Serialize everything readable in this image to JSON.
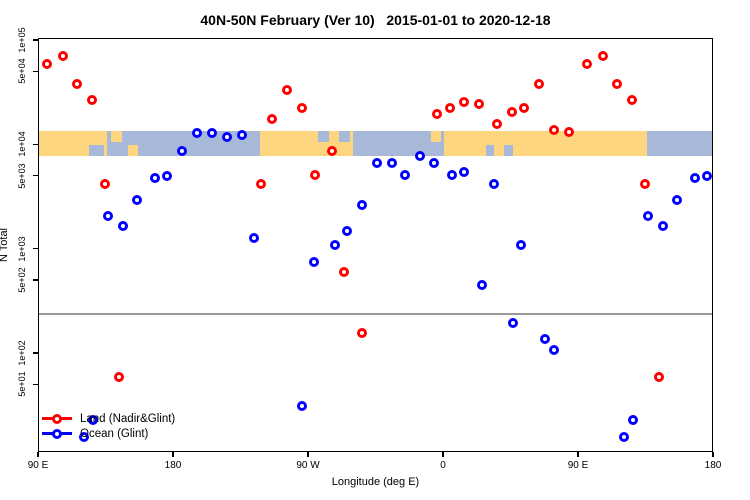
{
  "title": "40N-50N February (Ver 10)   2015-01-01 to 2020-12-18",
  "y_axis": {
    "label": "N Total",
    "ticks": [
      {
        "label": "1e+05",
        "value": 100000
      },
      {
        "label": "5e+04",
        "value": 50000
      },
      {
        "label": "1e+04",
        "value": 10000
      },
      {
        "label": "5e+03",
        "value": 5000
      },
      {
        "label": "1e+03",
        "value": 1000
      },
      {
        "label": "5e+02",
        "value": 500
      },
      {
        "label": "1e+02",
        "value": 100
      },
      {
        "label": "5e+01",
        "value": 50
      }
    ]
  },
  "x_axis": {
    "label": "Longitude (deg E)",
    "ticks": [
      {
        "label": "90 E",
        "lon": 90
      },
      {
        "label": "180",
        "lon": 180
      },
      {
        "label": "90 W",
        "lon": 270
      },
      {
        "label": "0",
        "lon": 360
      },
      {
        "label": "90 E",
        "lon": 450
      },
      {
        "label": "180",
        "lon": 540
      }
    ]
  },
  "legend": {
    "items": [
      {
        "label": "Land (Nadir&Glint)",
        "color": "#FF0000"
      },
      {
        "label": "Ocean (Glint)",
        "color": "#0000FF"
      }
    ]
  },
  "colors": {
    "land_point": "#FF0000",
    "ocean_point": "#0000FF",
    "map_land": "#FCD57E",
    "map_ocean": "#A8B8D8",
    "reference_line": "#999999"
  },
  "chart_data": {
    "type": "scatter",
    "title": "40N-50N February (Ver 10)   2015-01-01 to 2020-12-18",
    "xlabel": "Longitude (deg E)",
    "ylabel": "N Total",
    "y_scale": "log",
    "x_range": [
      90,
      540
    ],
    "y_range": [
      10,
      100000
    ],
    "x_note": "axis runs 90E eastward: 90E, 180, 90W, 0, 90E, 180; lon 450-540 repeats lon 90-180",
    "grid": false,
    "legend_position": "bottom-left",
    "reference_line_y": 240,
    "map_band": {
      "description": "land/ocean map strip for latitude 40N-50N drawn across the plot",
      "top_value": 13700,
      "bottom_value": 7900,
      "segments": [
        {
          "surface": "land",
          "from": 90,
          "to": 135
        },
        {
          "surface": "ocean",
          "from": 135,
          "to": 237
        },
        {
          "surface": "land",
          "from": 237,
          "to": 299
        },
        {
          "surface": "ocean",
          "from": 299,
          "to": 360
        },
        {
          "surface": "land",
          "from": 360,
          "to": 495
        },
        {
          "surface": "ocean",
          "from": 495,
          "to": 540
        }
      ],
      "patches": [
        {
          "surface": "ocean",
          "from": 123,
          "to": 133,
          "pos": "bottom"
        },
        {
          "surface": "land",
          "from": 138,
          "to": 145,
          "pos": "top"
        },
        {
          "surface": "land",
          "from": 149,
          "to": 156,
          "pos": "bottom"
        },
        {
          "surface": "ocean",
          "from": 276,
          "to": 283,
          "pos": "top"
        },
        {
          "surface": "ocean",
          "from": 290,
          "to": 297,
          "pos": "top"
        },
        {
          "surface": "land",
          "from": 351,
          "to": 358,
          "pos": "top"
        },
        {
          "surface": "ocean",
          "from": 388,
          "to": 393,
          "pos": "bottom"
        },
        {
          "surface": "ocean",
          "from": 400,
          "to": 406,
          "pos": "bottom"
        },
        {
          "surface": "ocean",
          "from": 497,
          "to": 504,
          "pos": "top"
        }
      ]
    },
    "series": [
      {
        "name": "Land (Nadir&Glint)",
        "color": "#FF0000",
        "points": [
          [
            95,
            60000
          ],
          [
            106,
            72000
          ],
          [
            115,
            39000
          ],
          [
            125,
            27000
          ],
          [
            134,
            4300
          ],
          [
            143,
            60
          ],
          [
            238,
            4300
          ],
          [
            245,
            18000
          ],
          [
            255,
            34000
          ],
          [
            265,
            23000
          ],
          [
            274,
            5200
          ],
          [
            285,
            8800
          ],
          [
            293,
            610
          ],
          [
            305,
            160
          ],
          [
            355,
            20000
          ],
          [
            364,
            23000
          ],
          [
            373,
            26000
          ],
          [
            383,
            25000
          ],
          [
            395,
            16000
          ],
          [
            405,
            21000
          ],
          [
            413,
            23000
          ],
          [
            423,
            39000
          ],
          [
            433,
            14000
          ],
          [
            443,
            13500
          ],
          [
            455,
            60000
          ],
          [
            466,
            72000
          ],
          [
            475,
            39000
          ],
          [
            485,
            27000
          ],
          [
            494,
            4300
          ],
          [
            503,
            60
          ]
        ]
      },
      {
        "name": "Ocean (Glint)",
        "color": "#0000FF",
        "points": [
          [
            120,
            16
          ],
          [
            126,
            23
          ],
          [
            136,
            2100
          ],
          [
            146,
            1700
          ],
          [
            155,
            3000
          ],
          [
            167,
            4900
          ],
          [
            175,
            5100
          ],
          [
            185,
            8800
          ],
          [
            195,
            13000
          ],
          [
            205,
            13000
          ],
          [
            215,
            12000
          ],
          [
            225,
            12500
          ],
          [
            233,
            1300
          ],
          [
            265,
            32
          ],
          [
            273,
            760
          ],
          [
            287,
            1100
          ],
          [
            295,
            1500
          ],
          [
            305,
            2700
          ],
          [
            315,
            6800
          ],
          [
            325,
            6800
          ],
          [
            334,
            5200
          ],
          [
            344,
            7900
          ],
          [
            353,
            6800
          ],
          [
            365,
            5200
          ],
          [
            373,
            5500
          ],
          [
            385,
            460
          ],
          [
            393,
            4300
          ],
          [
            406,
            200
          ],
          [
            411,
            1100
          ],
          [
            427,
            140
          ],
          [
            433,
            110
          ],
          [
            480,
            16
          ],
          [
            486,
            23
          ],
          [
            496,
            2100
          ],
          [
            506,
            1700
          ],
          [
            515,
            3000
          ],
          [
            527,
            4900
          ],
          [
            535,
            5100
          ]
        ]
      }
    ]
  }
}
